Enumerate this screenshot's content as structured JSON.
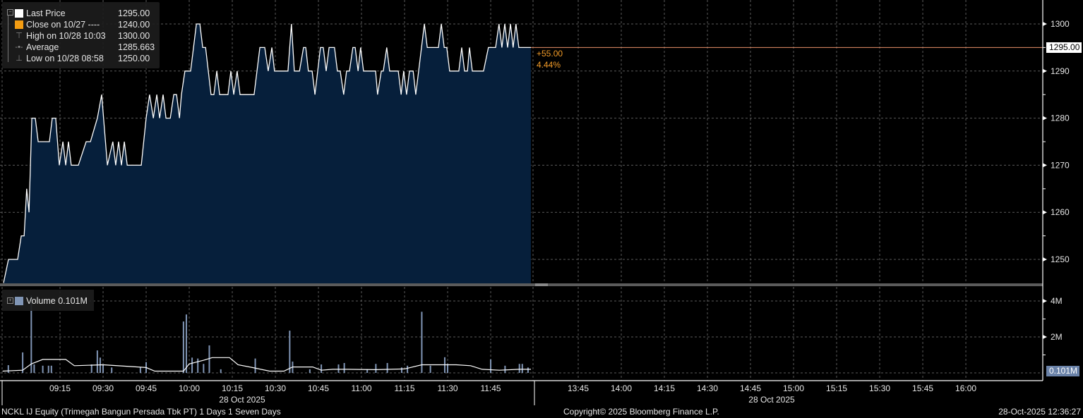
{
  "legend": {
    "items": [
      {
        "label": "Last Price",
        "value": "1295.00",
        "icon": "white-square",
        "color": "#ffffff"
      },
      {
        "label": "Close on 10/27 ----",
        "value": "1240.00",
        "icon": "orange-square",
        "color": "#f39c12"
      },
      {
        "label": "High on 10/28 10:03",
        "value": "1300.00",
        "icon": "high-marker-icon"
      },
      {
        "label": "Average",
        "value": "1285.663",
        "icon": "average-marker-icon"
      },
      {
        "label": "Low on 10/28 08:58",
        "value": "1250.00",
        "icon": "low-marker-icon"
      }
    ],
    "volume_label": "Volume",
    "volume_value": "0.101M",
    "volume_color": "#8095b5"
  },
  "change": {
    "abs": "+55.00",
    "pct": "4.44%",
    "color": "#f39c28"
  },
  "last_price_tag": "1295.00",
  "volume_tag": "0.101M",
  "footer": {
    "left": "NCKL IJ Equity (Trimegah Bangun Persada Tbk PT) 1 Days 1 Seven Days",
    "center": "Copyright© 2025 Bloomberg Finance L.P.",
    "right": "28-Oct-2025 12:36:27"
  },
  "chart_data": [
    {
      "type": "area",
      "series": [
        {
          "name": "Last Price",
          "color": "#ffffff",
          "fill": "#061f3b"
        }
      ],
      "reference_line": {
        "value": 1295,
        "color": "#e8906a"
      },
      "ylim": [
        1245,
        1305
      ],
      "y_ticks": [
        "1300",
        "1290",
        "1280",
        "1270",
        "1260",
        "1250"
      ],
      "grid": true,
      "legend_position": "top-left",
      "points": [
        [
          "08:57:03",
          1250
        ],
        [
          "09:00:15",
          1250
        ],
        [
          "09:01:30",
          1255
        ],
        [
          "09:02:30",
          1255
        ],
        [
          "09:03:24",
          1265
        ],
        [
          "09:04:12",
          1260
        ],
        [
          "09:05:12",
          1280
        ],
        [
          "09:06:24",
          1280
        ],
        [
          "09:07:24",
          1275
        ],
        [
          "09:11:18",
          1275
        ],
        [
          "09:12:18",
          1280
        ],
        [
          "09:13:30",
          1280
        ],
        [
          "09:14:45",
          1270
        ],
        [
          "09:16:00",
          1275
        ],
        [
          "09:17:00",
          1270
        ],
        [
          "09:17:57",
          1275
        ],
        [
          "09:18:54",
          1270
        ],
        [
          "09:21:24",
          1270
        ],
        [
          "09:24:06",
          1275
        ],
        [
          "09:25:36",
          1275
        ],
        [
          "09:28:00",
          1280
        ],
        [
          "09:29:30",
          1285
        ],
        [
          "09:31:30",
          1270
        ],
        [
          "09:33:24",
          1275
        ],
        [
          "09:34:24",
          1270
        ],
        [
          "09:35:24",
          1275
        ],
        [
          "09:36:24",
          1270
        ],
        [
          "09:37:24",
          1275
        ],
        [
          "09:38:24",
          1270
        ],
        [
          "09:43:18",
          1270
        ],
        [
          "09:45:00",
          1280
        ],
        [
          "09:46:12",
          1285
        ],
        [
          "09:47:30",
          1280
        ],
        [
          "09:48:42",
          1285
        ],
        [
          "09:49:42",
          1280
        ],
        [
          "09:50:54",
          1285
        ],
        [
          "09:51:54",
          1280
        ],
        [
          "09:53:24",
          1280
        ],
        [
          "09:54:36",
          1285
        ],
        [
          "09:55:36",
          1285
        ],
        [
          "09:56:36",
          1280
        ],
        [
          "09:57:18",
          1285
        ],
        [
          "09:58:30",
          1290
        ],
        [
          "10:00:30",
          1290
        ],
        [
          "10:02:30",
          1300
        ],
        [
          "10:03:42",
          1300
        ],
        [
          "10:04:42",
          1295
        ],
        [
          "10:05:42",
          1295
        ],
        [
          "10:07:36",
          1285
        ],
        [
          "10:08:36",
          1285
        ],
        [
          "10:09:36",
          1290
        ],
        [
          "10:10:36",
          1285
        ],
        [
          "10:13:30",
          1285
        ],
        [
          "10:14:30",
          1290
        ],
        [
          "10:15:30",
          1285
        ],
        [
          "10:16:42",
          1290
        ],
        [
          "10:17:42",
          1285
        ],
        [
          "10:22:36",
          1285
        ],
        [
          "10:24:36",
          1295
        ],
        [
          "10:26:18",
          1295
        ],
        [
          "10:27:30",
          1290
        ],
        [
          "10:28:48",
          1295
        ],
        [
          "10:29:42",
          1290
        ],
        [
          "10:34:24",
          1290
        ],
        [
          "10:35:36",
          1300
        ],
        [
          "10:36:36",
          1290
        ],
        [
          "10:38:24",
          1290
        ],
        [
          "10:39:48",
          1295
        ],
        [
          "10:40:36",
          1295
        ],
        [
          "10:41:30",
          1290
        ],
        [
          "10:42:48",
          1290
        ],
        [
          "10:43:48",
          1285
        ],
        [
          "10:45:42",
          1295
        ],
        [
          "10:46:42",
          1295
        ],
        [
          "10:47:42",
          1290
        ],
        [
          "10:48:42",
          1295
        ],
        [
          "10:50:36",
          1295
        ],
        [
          "10:51:36",
          1290
        ],
        [
          "10:52:36",
          1290
        ],
        [
          "10:53:48",
          1285
        ],
        [
          "10:54:48",
          1290
        ],
        [
          "10:55:48",
          1290
        ],
        [
          "10:57:00",
          1295
        ],
        [
          "10:57:48",
          1295
        ],
        [
          "10:58:48",
          1290
        ],
        [
          "10:59:42",
          1295
        ],
        [
          "11:00:42",
          1290
        ],
        [
          "11:04:54",
          1290
        ],
        [
          "11:05:36",
          1285
        ],
        [
          "11:06:54",
          1290
        ],
        [
          "11:07:36",
          1290
        ],
        [
          "11:08:48",
          1295
        ],
        [
          "11:09:48",
          1290
        ],
        [
          "11:12:48",
          1290
        ],
        [
          "11:13:48",
          1285
        ],
        [
          "11:14:42",
          1290
        ],
        [
          "11:15:42",
          1285
        ],
        [
          "11:16:42",
          1290
        ],
        [
          "11:18:00",
          1290
        ],
        [
          "11:18:54",
          1285
        ],
        [
          "11:21:54",
          1300
        ],
        [
          "11:22:54",
          1295
        ],
        [
          "11:26:48",
          1295
        ],
        [
          "11:27:48",
          1300
        ],
        [
          "11:28:48",
          1295
        ],
        [
          "11:29:42",
          1295
        ],
        [
          "11:30:42",
          1290
        ],
        [
          "11:33:54",
          1290
        ],
        [
          "11:34:54",
          1295
        ],
        [
          "11:35:54",
          1290
        ],
        [
          "11:36:54",
          1290
        ],
        [
          "11:37:36",
          1295
        ],
        [
          "11:38:36",
          1290
        ],
        [
          "11:42:30",
          1290
        ],
        [
          "11:44:12",
          1295
        ],
        [
          "11:46:42",
          1295
        ],
        [
          "11:47:54",
          1300
        ],
        [
          "11:48:54",
          1295
        ],
        [
          "11:49:54",
          1300
        ],
        [
          "11:50:54",
          1295
        ],
        [
          "11:51:54",
          1300
        ],
        [
          "11:52:48",
          1295
        ],
        [
          "11:53:48",
          1300
        ],
        [
          "11:54:48",
          1295
        ],
        [
          "11:59:00",
          1295
        ]
      ]
    },
    {
      "type": "bar",
      "series": [
        {
          "name": "Volume",
          "color": "#8095b5"
        }
      ],
      "ylim_millions": [
        0,
        4.4
      ],
      "y_ticks": [
        "4M",
        "2M"
      ],
      "bars_millions": [
        [
          "08:57",
          0.43
        ],
        [
          "09:02",
          1.14
        ],
        [
          "09:05",
          4.3
        ],
        [
          "09:06",
          0.47
        ],
        [
          "09:09",
          0.4
        ],
        [
          "09:11",
          0.4
        ],
        [
          "09:12",
          0.4
        ],
        [
          "09:26",
          0.47
        ],
        [
          "09:28",
          1.25
        ],
        [
          "09:29",
          0.85
        ],
        [
          "09:30",
          0.45
        ],
        [
          "09:33",
          0.3
        ],
        [
          "09:43",
          0.3
        ],
        [
          "09:45",
          0.6
        ],
        [
          "09:58",
          2.86
        ],
        [
          "09:59",
          3.25
        ],
        [
          "10:01",
          0.85
        ],
        [
          "10:03",
          0.8
        ],
        [
          "10:05",
          0.5
        ],
        [
          "10:07",
          1.53
        ],
        [
          "10:11",
          0.2
        ],
        [
          "10:23",
          0.8
        ],
        [
          "10:35",
          2.35
        ],
        [
          "10:36",
          0.63
        ],
        [
          "10:42",
          0.2
        ],
        [
          "10:46",
          0.47
        ],
        [
          "10:52",
          0.47
        ],
        [
          "10:54",
          0.55
        ],
        [
          "11:02",
          0.2
        ],
        [
          "11:05",
          0.5
        ],
        [
          "11:09",
          0.55
        ],
        [
          "11:14",
          0.3
        ],
        [
          "11:16",
          0.4
        ],
        [
          "11:21",
          3.4
        ],
        [
          "11:24",
          0.4
        ],
        [
          "11:29",
          0.87
        ],
        [
          "11:30",
          0.5
        ],
        [
          "11:45",
          0.75
        ],
        [
          "11:50",
          0.4
        ],
        [
          "11:55",
          0.5
        ],
        [
          "11:56",
          0.5
        ],
        [
          "11:58",
          0.3
        ]
      ],
      "average_line_millions": [
        [
          "08:55",
          0.1
        ],
        [
          "09:02",
          0.15
        ],
        [
          "09:05",
          0.5
        ],
        [
          "09:09",
          0.75
        ],
        [
          "09:17",
          0.75
        ],
        [
          "09:20",
          0.4
        ],
        [
          "09:30",
          0.45
        ],
        [
          "09:45",
          0.3
        ],
        [
          "09:48",
          0.1
        ],
        [
          "09:58",
          0.1
        ],
        [
          "10:00",
          0.5
        ],
        [
          "10:05",
          0.7
        ],
        [
          "10:08",
          0.85
        ],
        [
          "10:14",
          0.85
        ],
        [
          "10:17",
          0.45
        ],
        [
          "10:22",
          0.3
        ],
        [
          "10:28",
          0.1
        ],
        [
          "10:33",
          0.1
        ],
        [
          "10:36",
          0.33
        ],
        [
          "10:43",
          0.33
        ],
        [
          "10:46",
          0.15
        ],
        [
          "10:50",
          0.2
        ],
        [
          "10:55",
          0.2
        ],
        [
          "11:05",
          0.18
        ],
        [
          "11:15",
          0.22
        ],
        [
          "11:21",
          0.45
        ],
        [
          "11:33",
          0.45
        ],
        [
          "11:38",
          0.4
        ],
        [
          "11:42",
          0.2
        ],
        [
          "11:48",
          0.15
        ],
        [
          "11:55",
          0.2
        ],
        [
          "11:59",
          0.2
        ]
      ]
    }
  ],
  "x_axis": {
    "ticks": [
      "09:15",
      "09:30",
      "09:45",
      "10:00",
      "10:15",
      "10:30",
      "10:45",
      "11:00",
      "11:15",
      "11:30",
      "11:45",
      "13:45",
      "14:00",
      "14:15",
      "14:30",
      "14:45",
      "15:00",
      "15:15",
      "15:30",
      "15:45",
      "16:00"
    ],
    "date_labels": [
      "28 Oct 2025",
      "28 Oct 2025"
    ]
  }
}
